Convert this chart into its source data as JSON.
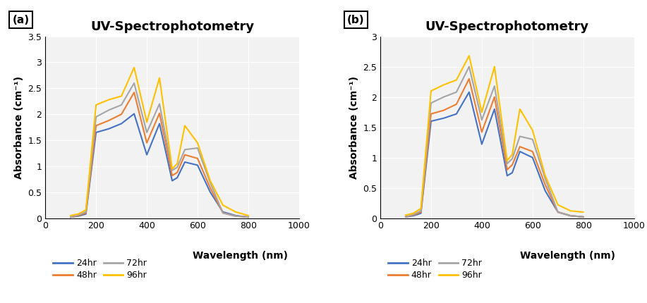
{
  "title": "UV-Spectrophotometry",
  "ylabel": "Absorbance (cm⁻¹)",
  "xlabel": "Wavelength (nm)",
  "colors": {
    "24hr": "#4472C4",
    "48hr": "#ED7D31",
    "72hr": "#A5A5A5",
    "96hr": "#FFC000"
  },
  "panel_a": {
    "label": "(a)",
    "ylim": [
      0,
      3.5
    ],
    "yticks": [
      0,
      0.5,
      1.0,
      1.5,
      2.0,
      2.5,
      3.0,
      3.5
    ],
    "xlim": [
      0,
      1000
    ],
    "xticks": [
      0,
      200,
      400,
      600,
      800,
      1000
    ],
    "series": {
      "24hr": [
        [
          100,
          0.02
        ],
        [
          130,
          0.04
        ],
        [
          160,
          0.08
        ],
        [
          200,
          1.65
        ],
        [
          250,
          1.72
        ],
        [
          300,
          1.82
        ],
        [
          350,
          2.01
        ],
        [
          400,
          1.22
        ],
        [
          450,
          1.82
        ],
        [
          500,
          0.72
        ],
        [
          520,
          0.78
        ],
        [
          550,
          1.08
        ],
        [
          600,
          1.02
        ],
        [
          650,
          0.5
        ],
        [
          700,
          0.12
        ],
        [
          750,
          0.05
        ],
        [
          800,
          0.02
        ]
      ],
      "48hr": [
        [
          100,
          0.02
        ],
        [
          130,
          0.05
        ],
        [
          160,
          0.1
        ],
        [
          200,
          1.78
        ],
        [
          250,
          1.88
        ],
        [
          300,
          2.0
        ],
        [
          350,
          2.42
        ],
        [
          400,
          1.45
        ],
        [
          450,
          2.02
        ],
        [
          500,
          0.82
        ],
        [
          520,
          0.88
        ],
        [
          550,
          1.22
        ],
        [
          600,
          1.15
        ],
        [
          650,
          0.58
        ],
        [
          700,
          0.1
        ],
        [
          750,
          0.04
        ],
        [
          800,
          0.02
        ]
      ],
      "72hr": [
        [
          100,
          0.02
        ],
        [
          130,
          0.06
        ],
        [
          160,
          0.12
        ],
        [
          200,
          1.95
        ],
        [
          250,
          2.08
        ],
        [
          300,
          2.18
        ],
        [
          350,
          2.6
        ],
        [
          400,
          1.65
        ],
        [
          450,
          2.2
        ],
        [
          500,
          0.92
        ],
        [
          520,
          0.98
        ],
        [
          550,
          1.32
        ],
        [
          600,
          1.35
        ],
        [
          650,
          0.68
        ],
        [
          700,
          0.1
        ],
        [
          750,
          0.04
        ],
        [
          800,
          0.02
        ]
      ],
      "96hr": [
        [
          100,
          0.05
        ],
        [
          130,
          0.08
        ],
        [
          160,
          0.16
        ],
        [
          200,
          2.18
        ],
        [
          250,
          2.28
        ],
        [
          300,
          2.35
        ],
        [
          350,
          2.9
        ],
        [
          400,
          1.85
        ],
        [
          450,
          2.7
        ],
        [
          500,
          0.95
        ],
        [
          520,
          1.05
        ],
        [
          550,
          1.78
        ],
        [
          600,
          1.45
        ],
        [
          650,
          0.72
        ],
        [
          700,
          0.25
        ],
        [
          750,
          0.12
        ],
        [
          800,
          0.05
        ]
      ]
    }
  },
  "panel_b": {
    "label": "(b)",
    "ylim": [
      0,
      3
    ],
    "yticks": [
      0,
      0.5,
      1.0,
      1.5,
      2.0,
      2.5,
      3.0
    ],
    "xlim": [
      0,
      1000
    ],
    "xticks": [
      0,
      200,
      400,
      600,
      800,
      1000
    ],
    "series": {
      "24hr": [
        [
          100,
          0.02
        ],
        [
          130,
          0.04
        ],
        [
          160,
          0.08
        ],
        [
          200,
          1.6
        ],
        [
          250,
          1.65
        ],
        [
          300,
          1.72
        ],
        [
          350,
          2.08
        ],
        [
          400,
          1.22
        ],
        [
          450,
          1.8
        ],
        [
          500,
          0.7
        ],
        [
          520,
          0.75
        ],
        [
          550,
          1.1
        ],
        [
          600,
          1.0
        ],
        [
          650,
          0.45
        ],
        [
          700,
          0.1
        ],
        [
          750,
          0.04
        ],
        [
          800,
          0.02
        ]
      ],
      "48hr": [
        [
          100,
          0.02
        ],
        [
          130,
          0.05
        ],
        [
          160,
          0.1
        ],
        [
          200,
          1.72
        ],
        [
          250,
          1.78
        ],
        [
          300,
          1.88
        ],
        [
          350,
          2.3
        ],
        [
          400,
          1.42
        ],
        [
          450,
          2.0
        ],
        [
          500,
          0.8
        ],
        [
          520,
          0.88
        ],
        [
          550,
          1.18
        ],
        [
          600,
          1.1
        ],
        [
          650,
          0.55
        ],
        [
          700,
          0.1
        ],
        [
          750,
          0.04
        ],
        [
          800,
          0.02
        ]
      ],
      "72hr": [
        [
          100,
          0.02
        ],
        [
          130,
          0.06
        ],
        [
          160,
          0.12
        ],
        [
          200,
          1.9
        ],
        [
          250,
          2.0
        ],
        [
          300,
          2.08
        ],
        [
          350,
          2.5
        ],
        [
          400,
          1.62
        ],
        [
          450,
          2.18
        ],
        [
          500,
          0.9
        ],
        [
          520,
          0.98
        ],
        [
          550,
          1.35
        ],
        [
          600,
          1.3
        ],
        [
          650,
          0.65
        ],
        [
          700,
          0.1
        ],
        [
          750,
          0.04
        ],
        [
          800,
          0.02
        ]
      ],
      "96hr": [
        [
          100,
          0.05
        ],
        [
          130,
          0.08
        ],
        [
          160,
          0.16
        ],
        [
          200,
          2.1
        ],
        [
          250,
          2.2
        ],
        [
          300,
          2.28
        ],
        [
          350,
          2.68
        ],
        [
          400,
          1.75
        ],
        [
          450,
          2.5
        ],
        [
          500,
          0.95
        ],
        [
          520,
          1.05
        ],
        [
          550,
          1.8
        ],
        [
          600,
          1.45
        ],
        [
          650,
          0.7
        ],
        [
          700,
          0.22
        ],
        [
          750,
          0.12
        ],
        [
          800,
          0.1
        ]
      ]
    }
  },
  "legend_order": [
    "24hr",
    "48hr",
    "72hr",
    "96hr"
  ],
  "background_color": "#ffffff",
  "plot_bg_color": "#f2f2f2",
  "grid_color": "#ffffff"
}
